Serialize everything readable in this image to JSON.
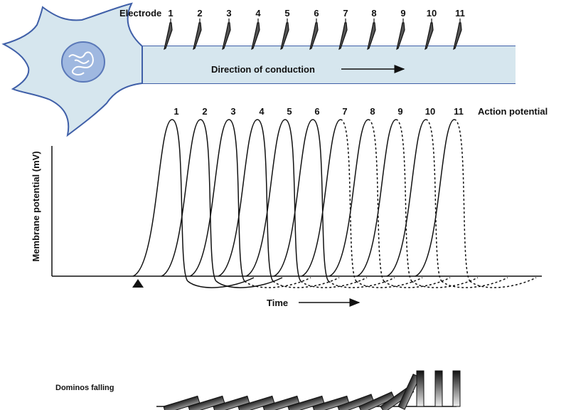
{
  "electrode_label": "Electrode",
  "electrodes": [
    "1",
    "2",
    "3",
    "4",
    "5",
    "6",
    "7",
    "8",
    "9",
    "10",
    "11"
  ],
  "direction_label": "Direction of conduction",
  "action_potentials": [
    "1",
    "2",
    "3",
    "4",
    "5",
    "6",
    "7",
    "8",
    "9",
    "10",
    "11"
  ],
  "action_potential_label": "Action potential",
  "y_axis_label": "Membrane potential (mV)",
  "x_axis_label": "Time",
  "dominos_label": "Dominos falling"
}
